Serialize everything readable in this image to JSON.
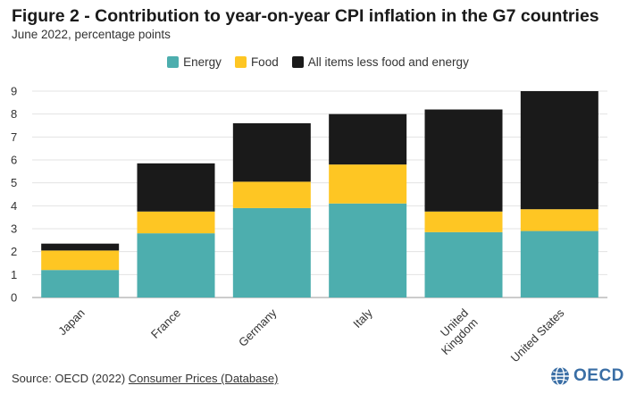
{
  "title": "Figure 2 - Contribution to year-on-year CPI inflation in the G7 countries",
  "subtitle": "June 2022, percentage points",
  "footer": {
    "source_prefix": "Source: OECD (2022)",
    "source_link": "Consumer Prices (Database)"
  },
  "logo": {
    "text": "OECD"
  },
  "chart_data": {
    "type": "bar",
    "stacked": true,
    "categories": [
      "Japan",
      "France",
      "Germany",
      "Italy",
      "United Kingdom",
      "United States"
    ],
    "category_labels": [
      [
        "Japan"
      ],
      [
        "France"
      ],
      [
        "Germany"
      ],
      [
        "Italy"
      ],
      [
        "United",
        "Kingdom"
      ],
      [
        "United States"
      ]
    ],
    "series": [
      {
        "name": "Energy",
        "color": "#4daeae",
        "values": [
          1.2,
          2.8,
          3.9,
          4.1,
          2.85,
          2.9
        ]
      },
      {
        "name": "Food",
        "color": "#fec623",
        "values": [
          0.85,
          0.95,
          1.15,
          1.7,
          0.9,
          0.95
        ]
      },
      {
        "name": "All items less food and energy",
        "color": "#1a1a1a",
        "values": [
          0.3,
          2.1,
          2.55,
          2.2,
          4.45,
          5.15
        ]
      }
    ],
    "ylim": [
      0,
      9
    ],
    "yticks": [
      0,
      1,
      2,
      3,
      4,
      5,
      6,
      7,
      8,
      9
    ],
    "grid": true,
    "legend_position": "top-center",
    "xlabel": "",
    "ylabel": ""
  }
}
